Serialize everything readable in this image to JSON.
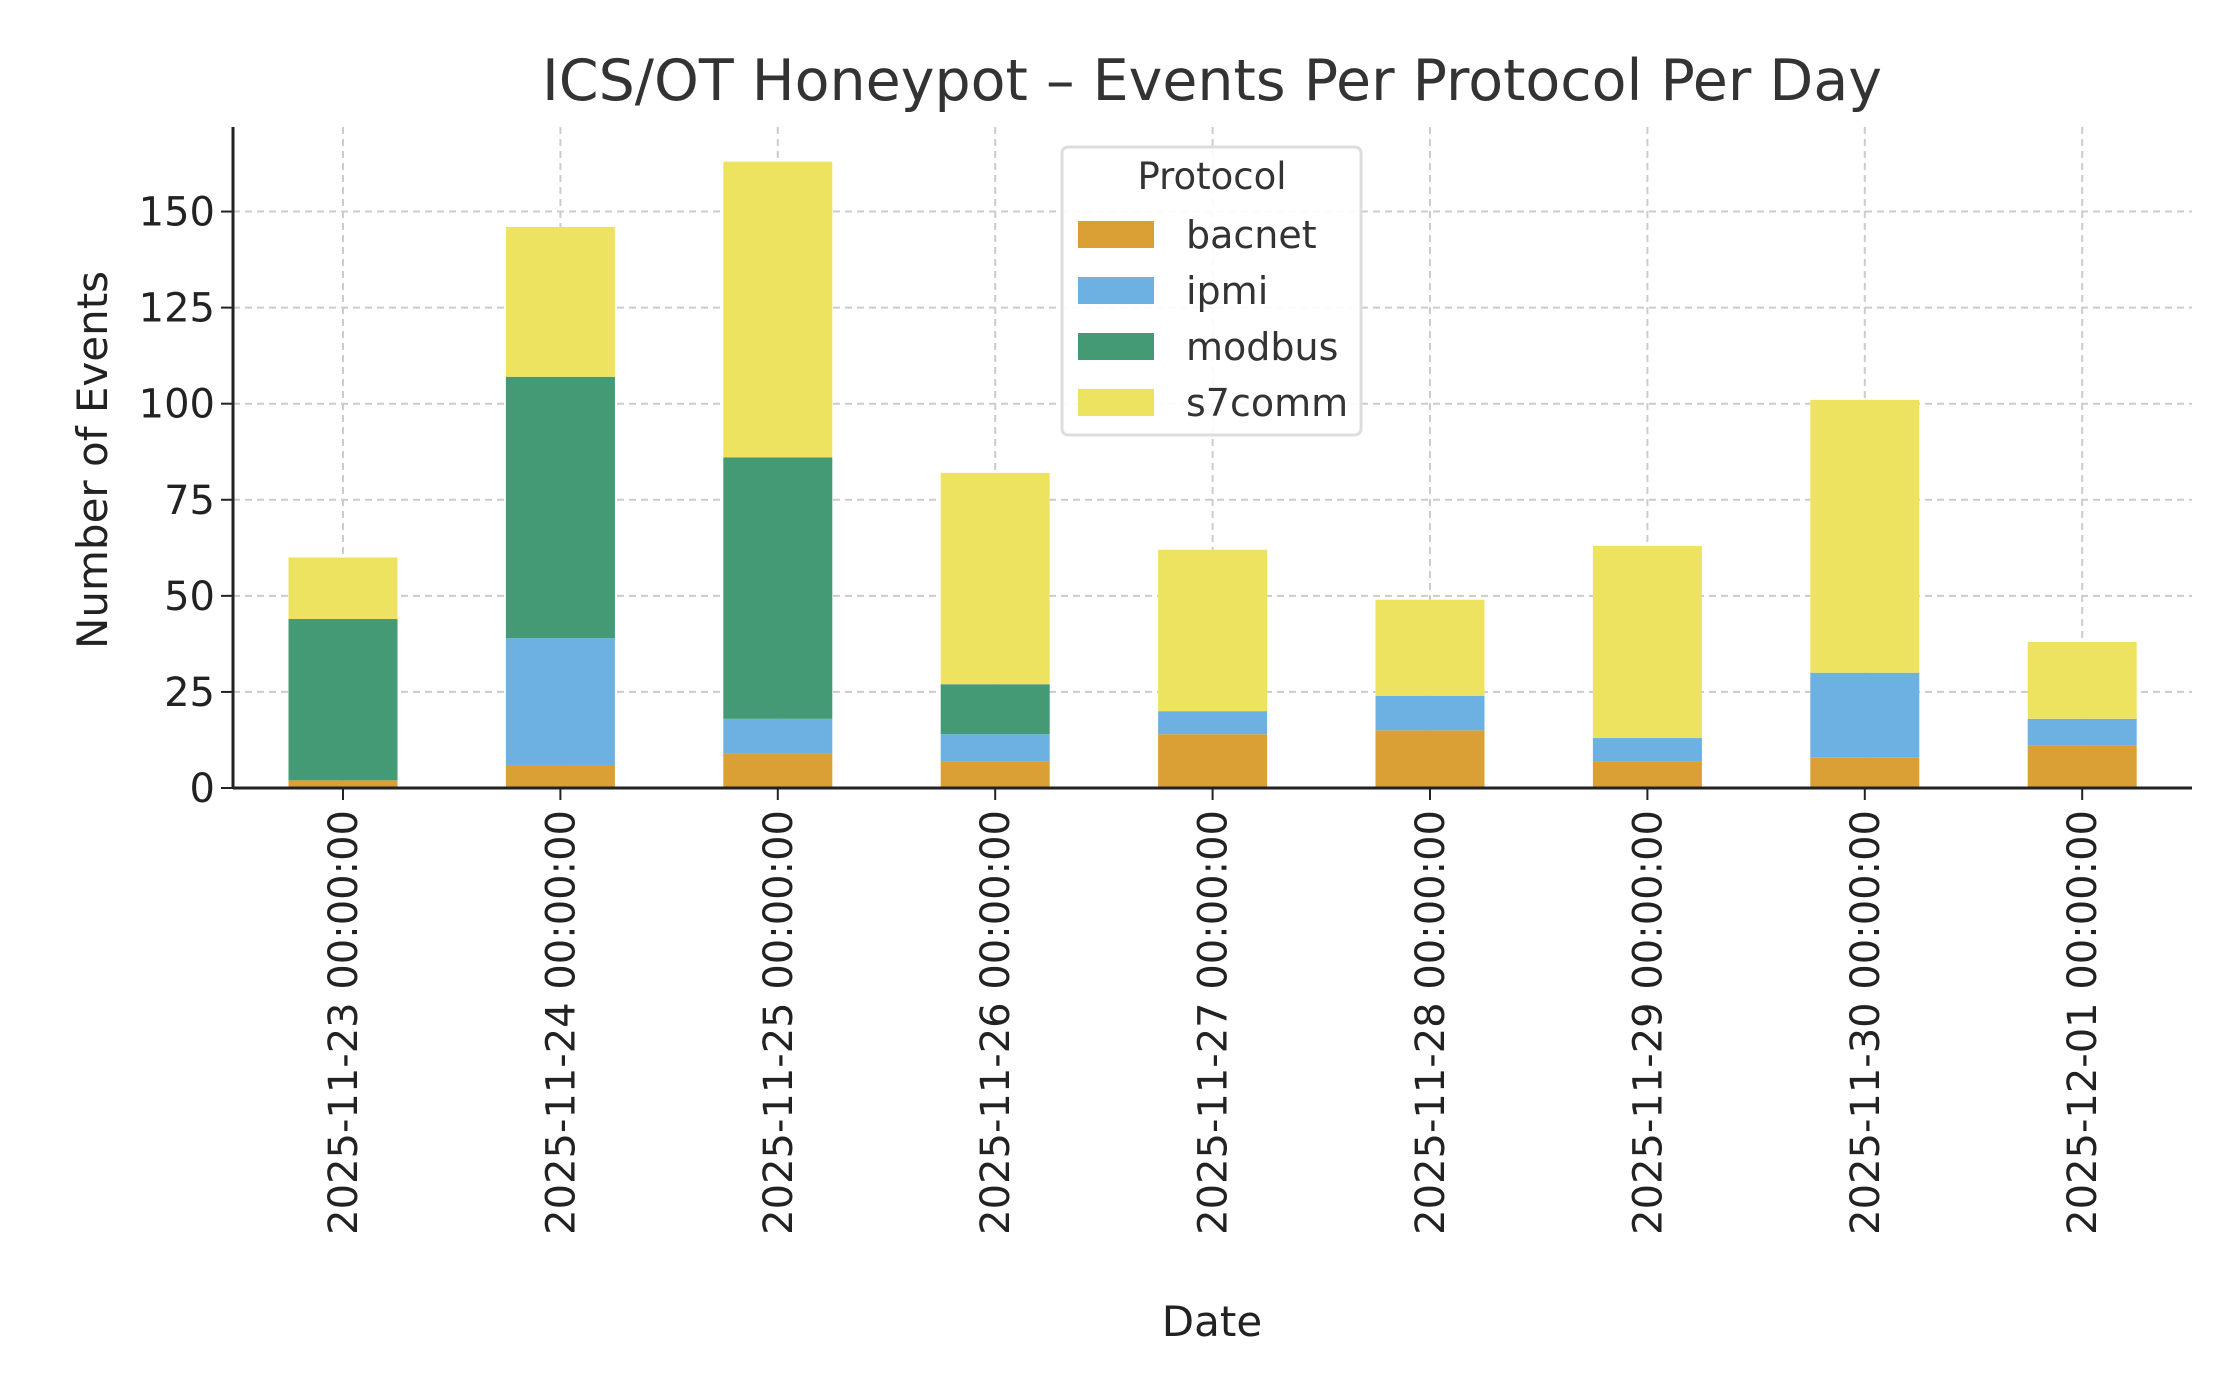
{
  "chart_data": {
    "type": "bar",
    "stacked": true,
    "title": "ICS/OT Honeypot – Events Per Protocol Per Day",
    "xlabel": "Date",
    "ylabel": "Number of Events",
    "ylim": [
      0,
      172
    ],
    "yticks": [
      0,
      25,
      50,
      75,
      100,
      125,
      150
    ],
    "grid": true,
    "legend": {
      "title": "Protocol",
      "placement": "top-center"
    },
    "categories": [
      "2025-11-23 00:00:00",
      "2025-11-24 00:00:00",
      "2025-11-25 00:00:00",
      "2025-11-26 00:00:00",
      "2025-11-27 00:00:00",
      "2025-11-28 00:00:00",
      "2025-11-29 00:00:00",
      "2025-11-30 00:00:00",
      "2025-12-01 00:00:00"
    ],
    "series": [
      {
        "name": "bacnet",
        "color": "#DAA036",
        "values": [
          2,
          6,
          9,
          7,
          14,
          15,
          7,
          8,
          11
        ]
      },
      {
        "name": "ipmi",
        "color": "#6CB1E1",
        "values": [
          0,
          33,
          9,
          7,
          6,
          9,
          6,
          22,
          7
        ]
      },
      {
        "name": "modbus",
        "color": "#449A74",
        "values": [
          42,
          68,
          68,
          13,
          0,
          0,
          0,
          0,
          0
        ]
      },
      {
        "name": "s7comm",
        "color": "#EEE361",
        "values": [
          16,
          39,
          77,
          55,
          42,
          25,
          50,
          71,
          20
        ]
      }
    ]
  }
}
